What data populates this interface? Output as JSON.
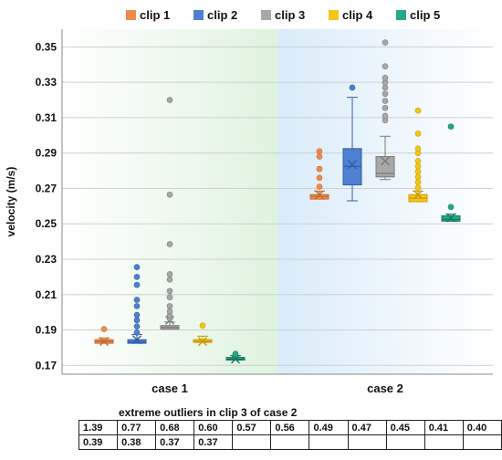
{
  "chart_data": {
    "type": "box",
    "title": "",
    "xlabel": "",
    "ylabel": "velocity (m/s)",
    "ylim": [
      0.165,
      0.36
    ],
    "yticks": [
      "0.35",
      "0.33",
      "0.31",
      "0.29",
      "0.27",
      "0.25",
      "0.23",
      "0.21",
      "0.19",
      "0.17"
    ],
    "ytick_values": [
      0.35,
      0.33,
      0.31,
      0.29,
      0.27,
      0.25,
      0.23,
      0.21,
      0.19,
      0.17
    ],
    "groups": [
      {
        "label": "case 1",
        "background": "#dff3df"
      },
      {
        "label": "case 2",
        "background": "#d9ecfa"
      }
    ],
    "legend": {
      "position": "top",
      "entries": [
        "clip 1",
        "clip 2",
        "clip 3",
        "clip 4",
        "clip 5"
      ]
    },
    "series": [
      {
        "name": "clip 1",
        "color": "#ee8a4c",
        "edge": "#c96a30",
        "boxes": [
          {
            "group": 0,
            "min": 0.1825,
            "q1": 0.1825,
            "median": 0.1835,
            "q3": 0.1845,
            "max": 0.1855,
            "mean": 0.1835,
            "outliers": [
              0.1905
            ]
          },
          {
            "group": 1,
            "min": 0.264,
            "q1": 0.264,
            "median": 0.2655,
            "q3": 0.2665,
            "max": 0.2685,
            "mean": 0.2665,
            "outliers": [
              0.271,
              0.276,
              0.281,
              0.288,
              0.291
            ]
          }
        ]
      },
      {
        "name": "clip 2",
        "color": "#4f7fcf",
        "edge": "#2f5ea8",
        "boxes": [
          {
            "group": 0,
            "min": 0.1825,
            "q1": 0.1825,
            "median": 0.183,
            "q3": 0.1845,
            "max": 0.1875,
            "mean": 0.1845,
            "outliers": [
              0.1885,
              0.192,
              0.1955,
              0.1985,
              0.2035,
              0.207,
              0.2155,
              0.22,
              0.2255
            ]
          },
          {
            "group": 1,
            "min": 0.263,
            "q1": 0.272,
            "median": 0.2825,
            "q3": 0.2925,
            "max": 0.3215,
            "mean": 0.2835,
            "outliers": [
              0.327
            ]
          }
        ]
      },
      {
        "name": "clip 3",
        "color": "#a8a8a8",
        "edge": "#7a7a7a",
        "boxes": [
          {
            "group": 0,
            "min": 0.1905,
            "q1": 0.1905,
            "median": 0.1915,
            "q3": 0.1925,
            "max": 0.1945,
            "mean": 0.1955,
            "outliers": [
              0.1965,
              0.198,
              0.2005,
              0.2035,
              0.2085,
              0.212,
              0.2185,
              0.2215,
              0.2385,
              0.2665,
              0.32
            ]
          },
          {
            "group": 1,
            "min": 0.275,
            "q1": 0.2765,
            "median": 0.2785,
            "q3": 0.288,
            "max": 0.2995,
            "mean": 0.2855,
            "outliers": [
              0.3085,
              0.311,
              0.3155,
              0.3195,
              0.3235,
              0.327,
              0.33,
              0.3325,
              0.339,
              0.3525
            ]
          }
        ]
      },
      {
        "name": "clip 4",
        "color": "#f5c518",
        "edge": "#c99a00",
        "boxes": [
          {
            "group": 0,
            "min": 0.183,
            "q1": 0.183,
            "median": 0.1835,
            "q3": 0.1845,
            "max": 0.1865,
            "mean": 0.1835,
            "outliers": [
              0.1925
            ]
          },
          {
            "group": 1,
            "min": 0.2625,
            "q1": 0.2625,
            "median": 0.2645,
            "q3": 0.2665,
            "max": 0.2685,
            "mean": 0.2665,
            "outliers": [
              0.2705,
              0.2735,
              0.2765,
              0.2795,
              0.2825,
              0.2855,
              0.29,
              0.2925,
              0.301,
              0.314
            ]
          }
        ]
      },
      {
        "name": "clip 5",
        "color": "#25a88a",
        "edge": "#127a62",
        "boxes": [
          {
            "group": 0,
            "min": 0.173,
            "q1": 0.173,
            "median": 0.1735,
            "q3": 0.1745,
            "max": 0.1755,
            "mean": 0.1735,
            "outliers": [
              0.1765
            ]
          },
          {
            "group": 1,
            "min": 0.2515,
            "q1": 0.2515,
            "median": 0.2525,
            "q3": 0.2545,
            "max": 0.2555,
            "mean": 0.2535,
            "outliers": [
              0.2595,
              0.305
            ]
          }
        ]
      }
    ],
    "table": {
      "title": "extreme  outliers  in  clip  3  of  case  2",
      "rows": [
        [
          "1.39",
          "0.77",
          "0.68",
          "0.60",
          "0.57",
          "0.56",
          "0.49",
          "0.47",
          "0.45",
          "0.41",
          "0.40"
        ],
        [
          "0.39",
          "0.38",
          "0.37",
          "0.37",
          "",
          "",
          "",
          "",
          "",
          "",
          ""
        ]
      ]
    }
  }
}
